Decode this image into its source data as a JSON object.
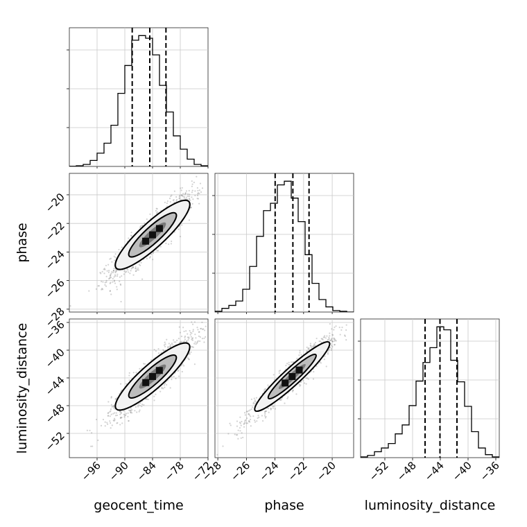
{
  "chart_data": {
    "type": "corner",
    "parameters": [
      "geocent_time",
      "phase",
      "luminosity_distance"
    ],
    "x_axis_labels": [
      "geocent_time",
      "phase",
      "luminosity_distance"
    ],
    "y_axis_labels": [
      "phase",
      "luminosity_distance"
    ],
    "grid": true,
    "ranges": {
      "geocent_time": [
        -102,
        -72
      ],
      "phase": [
        -28.2,
        -18.5
      ],
      "luminosity_distance": [
        -55.5,
        -35.5
      ]
    },
    "ticks": {
      "geocent_time": [
        -96,
        -90,
        -84,
        -78,
        -72
      ],
      "phase": [
        -28,
        -26,
        -24,
        -22,
        -20
      ],
      "luminosity_distance": [
        -52,
        -48,
        -44,
        -40,
        -36
      ]
    },
    "tick_labels": {
      "geocent_time": [
        "−96",
        "−90",
        "−84",
        "−78",
        "−72"
      ],
      "phase": [
        "−28",
        "−26",
        "−24",
        "−22",
        "−20"
      ],
      "luminosity_distance": [
        "−52",
        "−48",
        "−44",
        "−40",
        "−36"
      ]
    },
    "histograms": {
      "geocent_time": {
        "edges": [
          -102,
          -100.5,
          -99,
          -97.5,
          -96,
          -94.5,
          -93,
          -91.5,
          -90,
          -88.5,
          -87,
          -85.5,
          -84,
          -82.5,
          -81,
          -79.5,
          -78,
          -76.5,
          -75,
          -73.5,
          -72
        ],
        "counts": [
          0.2,
          1,
          3,
          9,
          20,
          35,
          62,
          110,
          152,
          190,
          197,
          193,
          168,
          122,
          82,
          46,
          26,
          11,
          3,
          1
        ]
      },
      "phase": {
        "edges": [
          -28.2,
          -27.715,
          -27.23,
          -26.745,
          -26.26,
          -25.775,
          -25.29,
          -24.805,
          -24.32,
          -23.835,
          -23.35,
          -22.865,
          -22.38,
          -21.895,
          -21.41,
          -20.925,
          -20.44,
          -19.955,
          -19.47,
          -18.985,
          -18.5
        ],
        "counts": [
          1,
          5,
          9,
          15,
          31,
          62,
          103,
          138,
          148,
          173,
          178,
          155,
          123,
          78,
          39,
          17,
          7,
          2,
          1,
          0
        ]
      },
      "luminosity_distance": {
        "edges": [
          -55.5,
          -54.5,
          -53.5,
          -52.5,
          -51.5,
          -50.5,
          -49.5,
          -48.5,
          -47.5,
          -46.5,
          -45.5,
          -44.5,
          -43.5,
          -42.5,
          -41.5,
          -40.5,
          -39.5,
          -38.5,
          -37.5,
          -36.5,
          -35.5
        ],
        "counts": [
          1,
          3,
          8,
          13,
          19,
          32,
          44,
          70,
          103,
          128,
          148,
          176,
          172,
          131,
          102,
          69,
          35,
          13,
          4,
          1
        ]
      }
    },
    "quantiles": {
      "geocent_time": [
        -88.4,
        -84.6,
        -81.1
      ],
      "phase": [
        -23.99,
        -22.75,
        -21.62
      ],
      "luminosity_distance": [
        -46.2,
        -44.05,
        -41.6
      ]
    },
    "pairs": [
      {
        "x": "geocent_time",
        "y": "phase",
        "center": [
          -84.0,
          -22.8
        ],
        "slope": 0.31,
        "corr": 0.9,
        "sx": 4.4,
        "sy": 1.45
      },
      {
        "x": "geocent_time",
        "y": "luminosity_distance",
        "center": [
          -84.0,
          -43.8
        ],
        "slope": 0.6,
        "corr": 0.9,
        "sx": 4.4,
        "sy": 2.9
      },
      {
        "x": "phase",
        "y": "luminosity_distance",
        "center": [
          -22.8,
          -43.8
        ],
        "slope": 1.9,
        "corr": 0.95,
        "sx": 1.45,
        "sy": 2.9
      }
    ],
    "scatter_color": "#7f7f7f",
    "line_color": "#000000"
  }
}
